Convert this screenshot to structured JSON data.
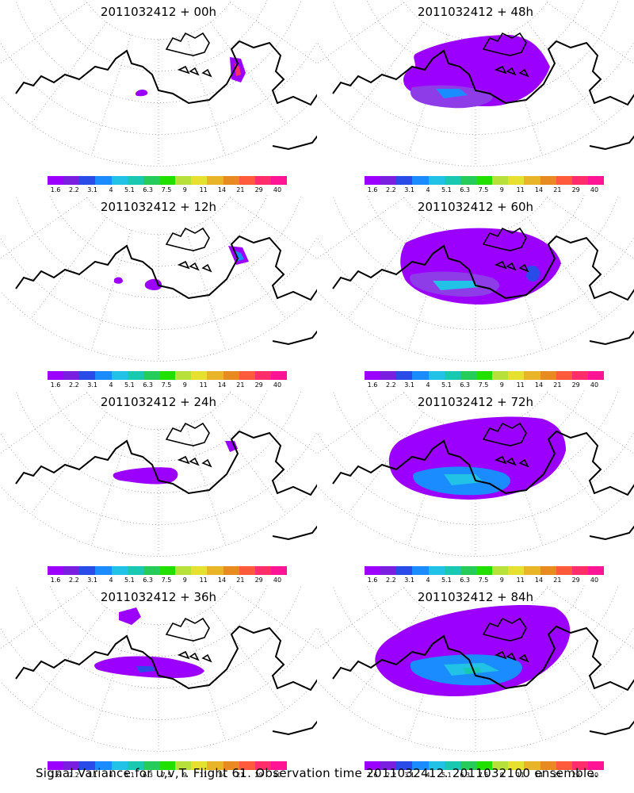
{
  "panels": [
    {
      "title": "2011032412 + 00h",
      "lead_hours": 0
    },
    {
      "title": "2011032412 + 48h",
      "lead_hours": 48
    },
    {
      "title": "2011032412 + 12h",
      "lead_hours": 12
    },
    {
      "title": "2011032412 + 60h",
      "lead_hours": 60
    },
    {
      "title": "2011032412 + 24h",
      "lead_hours": 24
    },
    {
      "title": "2011032412 + 72h",
      "lead_hours": 72
    },
    {
      "title": "2011032412 + 36h",
      "lead_hours": 36
    },
    {
      "title": "2011032412 + 84h",
      "lead_hours": 84
    }
  ],
  "colorbar": {
    "labels": [
      "1.6",
      "2.2",
      "3.1",
      "4",
      "5.1",
      "6.3",
      "7.5",
      "9",
      "11",
      "14",
      "21",
      "29",
      "40"
    ],
    "colors": [
      "#9b00ff",
      "#7a1fe0",
      "#2b4be8",
      "#1a8cff",
      "#22c2e6",
      "#18c8b0",
      "#26cc5a",
      "#21e000",
      "#b8e03a",
      "#e6e030",
      "#e8b428",
      "#e88a20",
      "#ff5a3c",
      "#ff2e6a",
      "#ff1493"
    ]
  },
  "caption": "Signal Variance for u,v,T. Flight 61. Observation time 2011032412. 2011032100 ensemble.",
  "chart_data": {
    "type": "heatmap",
    "title": "Signal Variance for u,v,T. Flight 61. Observation time 2011032412. 2011032100 ensemble.",
    "panels": [
      "2011032412 + 00h",
      "2011032412 + 48h",
      "2011032412 + 12h",
      "2011032412 + 60h",
      "2011032412 + 24h",
      "2011032412 + 72h",
      "2011032412 + 36h",
      "2011032412 + 84h"
    ],
    "colorbar_levels": [
      1.6,
      2.2,
      3.1,
      4,
      5.1,
      6.3,
      7.5,
      9,
      11,
      14,
      21,
      29,
      40
    ]
  }
}
